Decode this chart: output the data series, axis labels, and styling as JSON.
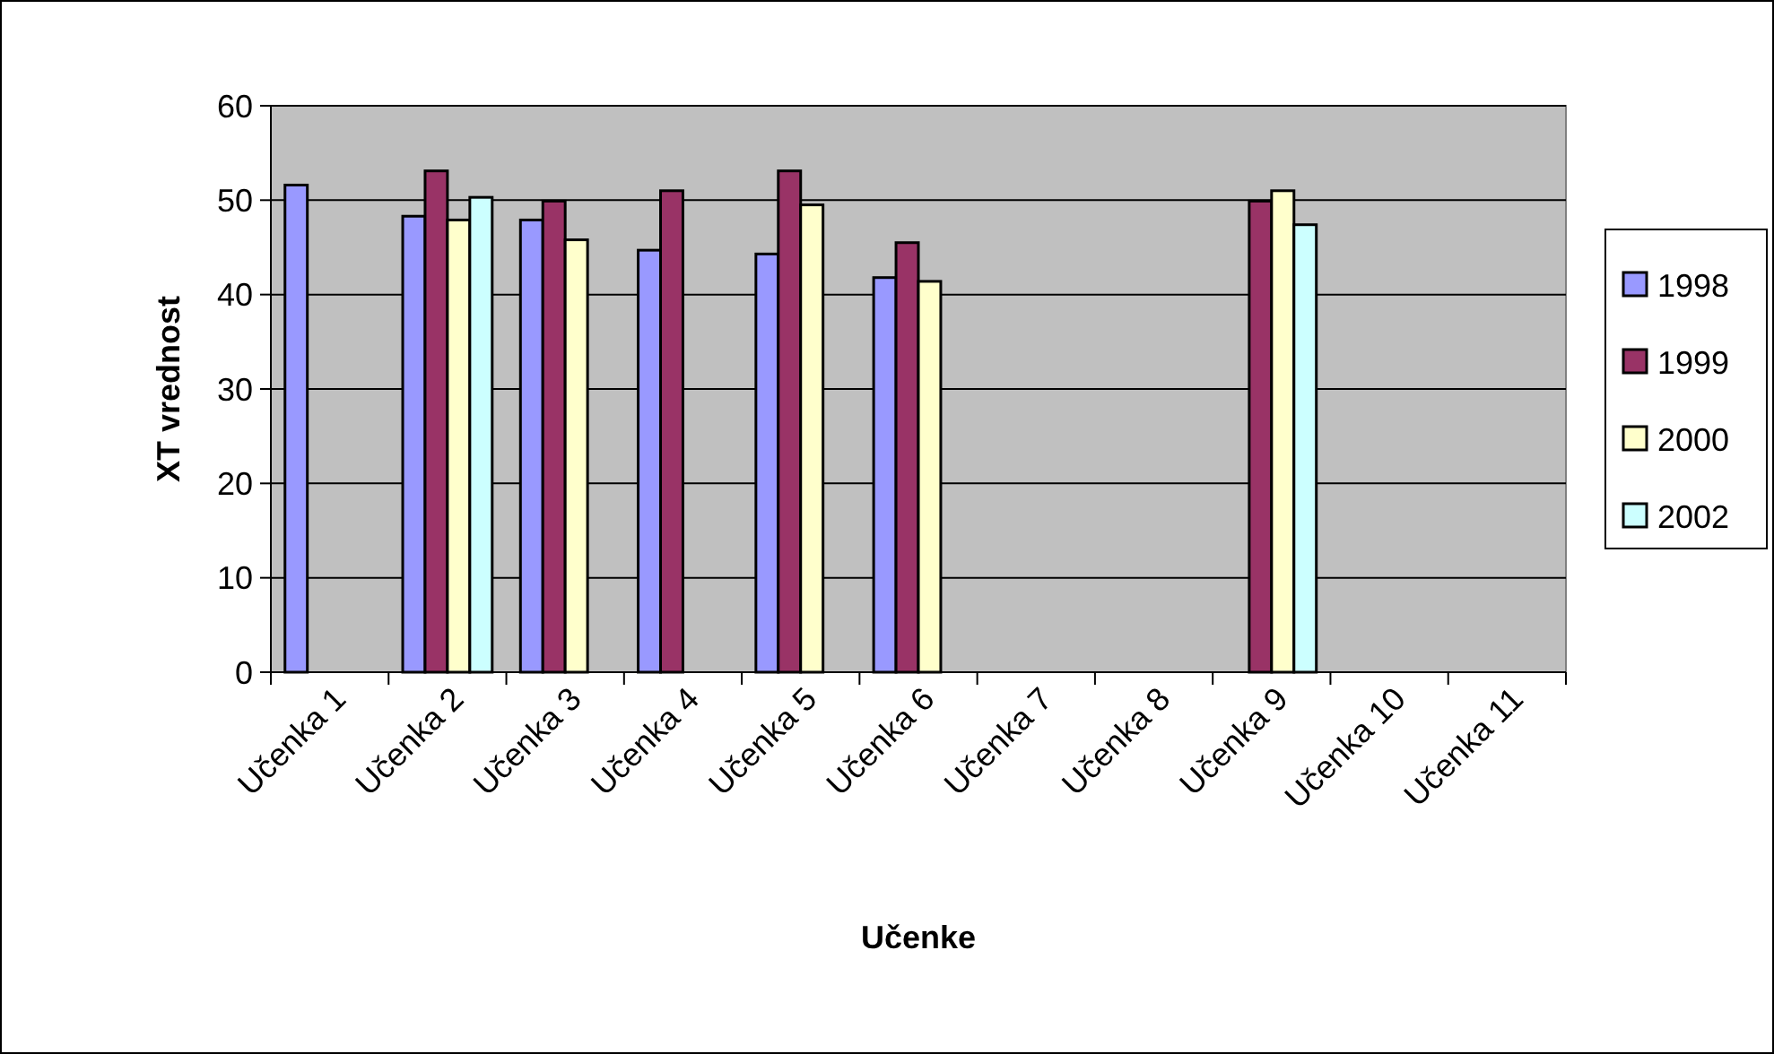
{
  "chart_data": {
    "type": "bar",
    "xlabel": "Učenke",
    "ylabel": "XT vrednost",
    "categories": [
      "Učenka 1",
      "Učenka 2",
      "Učenka 3",
      "Učenka 4",
      "Učenka 5",
      "Učenka 6",
      "Učenka 7",
      "Učenka 8",
      "Učenka 9",
      "Učenka 10",
      "Učenka 11"
    ],
    "series": [
      {
        "name": "1998",
        "color": "#9999ff",
        "values": [
          51.6,
          48.3,
          47.9,
          44.7,
          44.3,
          41.8,
          null,
          null,
          null,
          null,
          null
        ]
      },
      {
        "name": "1999",
        "color": "#993366",
        "values": [
          null,
          53.1,
          49.9,
          51.0,
          53.1,
          45.5,
          null,
          null,
          49.9,
          null,
          null
        ]
      },
      {
        "name": "2000",
        "color": "#ffffcc",
        "values": [
          null,
          47.9,
          45.8,
          null,
          49.5,
          41.4,
          null,
          null,
          51.0,
          null,
          null
        ]
      },
      {
        "name": "2002",
        "color": "#ccffff",
        "values": [
          null,
          50.3,
          null,
          null,
          null,
          null,
          null,
          null,
          47.4,
          null,
          null
        ]
      }
    ],
    "ylim": [
      0,
      60
    ],
    "yticks": [
      0,
      10,
      20,
      30,
      40,
      50,
      60
    ],
    "grid": "y",
    "legend": "right"
  }
}
